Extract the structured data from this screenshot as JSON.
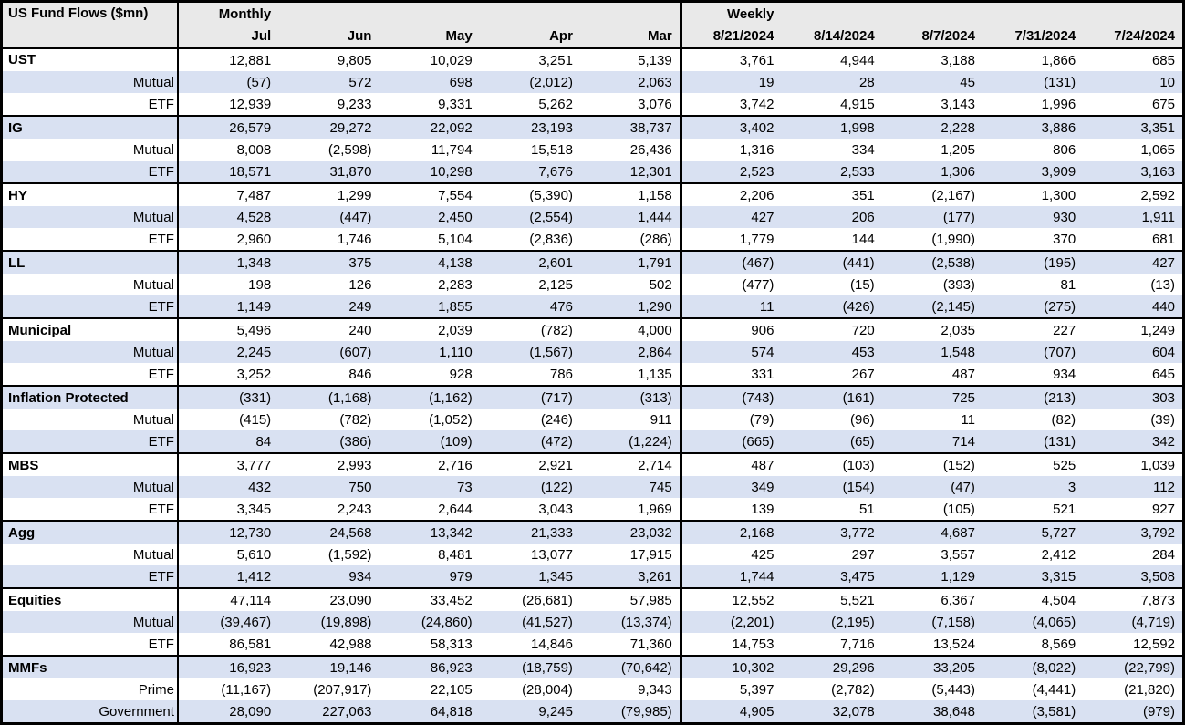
{
  "title": "US Fund Flows ($mn)",
  "sections": {
    "monthly": {
      "label": "Monthly",
      "columns": [
        "Jul",
        "Jun",
        "May",
        "Apr",
        "Mar"
      ]
    },
    "weekly": {
      "label": "Weekly",
      "columns": [
        "8/21/2024",
        "8/14/2024",
        "8/7/2024",
        "7/31/2024",
        "7/24/2024"
      ]
    }
  },
  "rows": [
    {
      "label": "UST",
      "type": "category",
      "monthly": [
        "12,881",
        "9,805",
        "10,029",
        "3,251",
        "5,139"
      ],
      "weekly": [
        "3,761",
        "4,944",
        "3,188",
        "1,866",
        "685"
      ]
    },
    {
      "label": "Mutual",
      "type": "sub",
      "monthly": [
        "(57)",
        "572",
        "698",
        "(2,012)",
        "2,063"
      ],
      "weekly": [
        "19",
        "28",
        "45",
        "(131)",
        "10"
      ]
    },
    {
      "label": "ETF",
      "type": "sub",
      "monthly": [
        "12,939",
        "9,233",
        "9,331",
        "5,262",
        "3,076"
      ],
      "weekly": [
        "3,742",
        "4,915",
        "3,143",
        "1,996",
        "675"
      ]
    },
    {
      "label": "IG",
      "type": "category",
      "monthly": [
        "26,579",
        "29,272",
        "22,092",
        "23,193",
        "38,737"
      ],
      "weekly": [
        "3,402",
        "1,998",
        "2,228",
        "3,886",
        "3,351"
      ]
    },
    {
      "label": "Mutual",
      "type": "sub",
      "monthly": [
        "8,008",
        "(2,598)",
        "11,794",
        "15,518",
        "26,436"
      ],
      "weekly": [
        "1,316",
        "334",
        "1,205",
        "806",
        "1,065"
      ]
    },
    {
      "label": "ETF",
      "type": "sub",
      "monthly": [
        "18,571",
        "31,870",
        "10,298",
        "7,676",
        "12,301"
      ],
      "weekly": [
        "2,523",
        "2,533",
        "1,306",
        "3,909",
        "3,163"
      ]
    },
    {
      "label": "HY",
      "type": "category",
      "monthly": [
        "7,487",
        "1,299",
        "7,554",
        "(5,390)",
        "1,158"
      ],
      "weekly": [
        "2,206",
        "351",
        "(2,167)",
        "1,300",
        "2,592"
      ]
    },
    {
      "label": "Mutual",
      "type": "sub",
      "monthly": [
        "4,528",
        "(447)",
        "2,450",
        "(2,554)",
        "1,444"
      ],
      "weekly": [
        "427",
        "206",
        "(177)",
        "930",
        "1,911"
      ]
    },
    {
      "label": "ETF",
      "type": "sub",
      "monthly": [
        "2,960",
        "1,746",
        "5,104",
        "(2,836)",
        "(286)"
      ],
      "weekly": [
        "1,779",
        "144",
        "(1,990)",
        "370",
        "681"
      ]
    },
    {
      "label": "LL",
      "type": "category",
      "monthly": [
        "1,348",
        "375",
        "4,138",
        "2,601",
        "1,791"
      ],
      "weekly": [
        "(467)",
        "(441)",
        "(2,538)",
        "(195)",
        "427"
      ]
    },
    {
      "label": "Mutual",
      "type": "sub",
      "monthly": [
        "198",
        "126",
        "2,283",
        "2,125",
        "502"
      ],
      "weekly": [
        "(477)",
        "(15)",
        "(393)",
        "81",
        "(13)"
      ]
    },
    {
      "label": "ETF",
      "type": "sub",
      "monthly": [
        "1,149",
        "249",
        "1,855",
        "476",
        "1,290"
      ],
      "weekly": [
        "11",
        "(426)",
        "(2,145)",
        "(275)",
        "440"
      ]
    },
    {
      "label": "Municipal",
      "type": "category",
      "monthly": [
        "5,496",
        "240",
        "2,039",
        "(782)",
        "4,000"
      ],
      "weekly": [
        "906",
        "720",
        "2,035",
        "227",
        "1,249"
      ]
    },
    {
      "label": "Mutual",
      "type": "sub",
      "monthly": [
        "2,245",
        "(607)",
        "1,110",
        "(1,567)",
        "2,864"
      ],
      "weekly": [
        "574",
        "453",
        "1,548",
        "(707)",
        "604"
      ]
    },
    {
      "label": "ETF",
      "type": "sub",
      "monthly": [
        "3,252",
        "846",
        "928",
        "786",
        "1,135"
      ],
      "weekly": [
        "331",
        "267",
        "487",
        "934",
        "645"
      ]
    },
    {
      "label": "Inflation Protected",
      "type": "category",
      "monthly": [
        "(331)",
        "(1,168)",
        "(1,162)",
        "(717)",
        "(313)"
      ],
      "weekly": [
        "(743)",
        "(161)",
        "725",
        "(213)",
        "303"
      ]
    },
    {
      "label": "Mutual",
      "type": "sub",
      "monthly": [
        "(415)",
        "(782)",
        "(1,052)",
        "(246)",
        "911"
      ],
      "weekly": [
        "(79)",
        "(96)",
        "11",
        "(82)",
        "(39)"
      ]
    },
    {
      "label": "ETF",
      "type": "sub",
      "monthly": [
        "84",
        "(386)",
        "(109)",
        "(472)",
        "(1,224)"
      ],
      "weekly": [
        "(665)",
        "(65)",
        "714",
        "(131)",
        "342"
      ]
    },
    {
      "label": "MBS",
      "type": "category",
      "monthly": [
        "3,777",
        "2,993",
        "2,716",
        "2,921",
        "2,714"
      ],
      "weekly": [
        "487",
        "(103)",
        "(152)",
        "525",
        "1,039"
      ]
    },
    {
      "label": "Mutual",
      "type": "sub",
      "monthly": [
        "432",
        "750",
        "73",
        "(122)",
        "745"
      ],
      "weekly": [
        "349",
        "(154)",
        "(47)",
        "3",
        "112"
      ]
    },
    {
      "label": "ETF",
      "type": "sub",
      "monthly": [
        "3,345",
        "2,243",
        "2,644",
        "3,043",
        "1,969"
      ],
      "weekly": [
        "139",
        "51",
        "(105)",
        "521",
        "927"
      ]
    },
    {
      "label": "Agg",
      "type": "category",
      "monthly": [
        "12,730",
        "24,568",
        "13,342",
        "21,333",
        "23,032"
      ],
      "weekly": [
        "2,168",
        "3,772",
        "4,687",
        "5,727",
        "3,792"
      ]
    },
    {
      "label": "Mutual",
      "type": "sub",
      "monthly": [
        "5,610",
        "(1,592)",
        "8,481",
        "13,077",
        "17,915"
      ],
      "weekly": [
        "425",
        "297",
        "3,557",
        "2,412",
        "284"
      ]
    },
    {
      "label": "ETF",
      "type": "sub",
      "monthly": [
        "1,412",
        "934",
        "979",
        "1,345",
        "3,261"
      ],
      "weekly": [
        "1,744",
        "3,475",
        "1,129",
        "3,315",
        "3,508"
      ]
    },
    {
      "label": "Equities",
      "type": "category",
      "monthly": [
        "47,114",
        "23,090",
        "33,452",
        "(26,681)",
        "57,985"
      ],
      "weekly": [
        "12,552",
        "5,521",
        "6,367",
        "4,504",
        "7,873"
      ]
    },
    {
      "label": "Mutual",
      "type": "sub",
      "monthly": [
        "(39,467)",
        "(19,898)",
        "(24,860)",
        "(41,527)",
        "(13,374)"
      ],
      "weekly": [
        "(2,201)",
        "(2,195)",
        "(7,158)",
        "(4,065)",
        "(4,719)"
      ]
    },
    {
      "label": "ETF",
      "type": "sub",
      "monthly": [
        "86,581",
        "42,988",
        "58,313",
        "14,846",
        "71,360"
      ],
      "weekly": [
        "14,753",
        "7,716",
        "13,524",
        "8,569",
        "12,592"
      ]
    },
    {
      "label": "MMFs",
      "type": "category",
      "monthly": [
        "16,923",
        "19,146",
        "86,923",
        "(18,759)",
        "(70,642)"
      ],
      "weekly": [
        "10,302",
        "29,296",
        "33,205",
        "(8,022)",
        "(22,799)"
      ]
    },
    {
      "label": "Prime",
      "type": "sub",
      "monthly": [
        "(11,167)",
        "(207,917)",
        "22,105",
        "(28,004)",
        "9,343"
      ],
      "weekly": [
        "5,397",
        "(2,782)",
        "(5,443)",
        "(4,441)",
        "(21,820)"
      ]
    },
    {
      "label": "Government",
      "type": "sub",
      "monthly": [
        "28,090",
        "227,063",
        "64,818",
        "9,245",
        "(79,985)"
      ],
      "weekly": [
        "4,905",
        "32,078",
        "38,648",
        "(3,581)",
        "(979)"
      ]
    }
  ],
  "colors": {
    "stripe": "#D9E1F2",
    "header_bg": "#E9E9E9",
    "border": "#000000"
  }
}
